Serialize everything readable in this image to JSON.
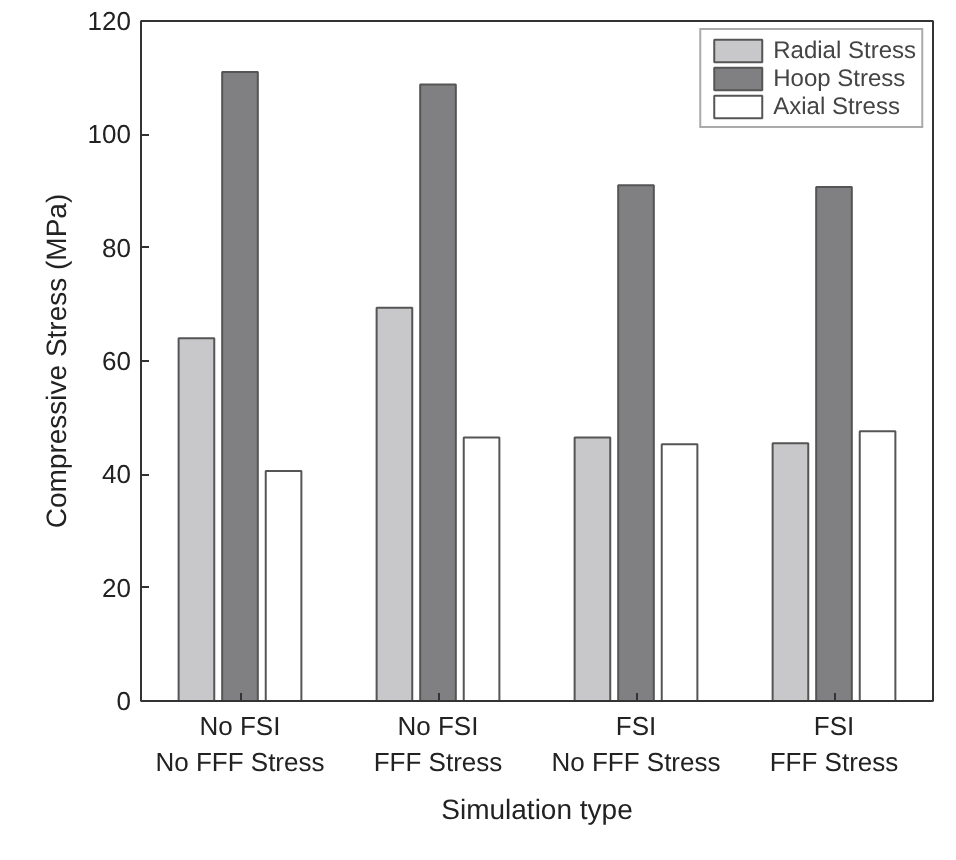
{
  "chart_data": {
    "type": "bar",
    "xlabel": "Simulation type",
    "ylabel": "Compressive Stress (MPa)",
    "categories": [
      "No FSI\nNo FFF Stress",
      "No FSI\nFFF Stress",
      "FSI\nNo FFF Stress",
      "FSI\nFFF Stress"
    ],
    "series": [
      {
        "name": "Radial Stress",
        "color": "#c8c8ca",
        "values": [
          64.0,
          69.4,
          46.5,
          45.5
        ]
      },
      {
        "name": "Hoop Stress",
        "color": "#808083",
        "values": [
          111.0,
          108.8,
          91.0,
          90.7
        ]
      },
      {
        "name": "Axial Stress",
        "color": "#ffffff",
        "values": [
          40.6,
          46.5,
          45.3,
          47.6
        ]
      }
    ],
    "ylim": [
      0,
      120
    ],
    "yticks": [
      0,
      20,
      40,
      60,
      80,
      100,
      120
    ],
    "grid": false,
    "legend": "top right"
  }
}
